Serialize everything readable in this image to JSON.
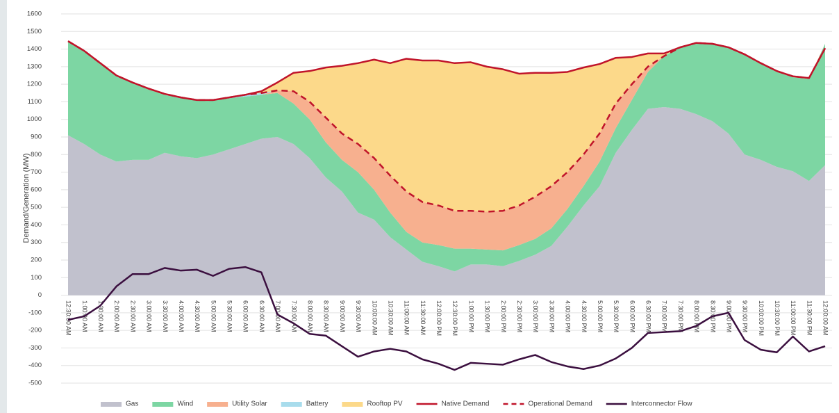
{
  "chart_data": {
    "type": "area",
    "y_label": "Demand/Generation (MW)",
    "categories": [
      "12:30:00 AM",
      "1:00:00 AM",
      "1:30:00 AM",
      "2:00:00 AM",
      "2:30:00 AM",
      "3:00:00 AM",
      "3:30:00 AM",
      "4:00:00 AM",
      "4:30:00 AM",
      "5:00:00 AM",
      "5:30:00 AM",
      "6:00:00 AM",
      "6:30:00 AM",
      "7:00:00 AM",
      "7:30:00 AM",
      "8:00:00 AM",
      "8:30:00 AM",
      "9:00:00 AM",
      "9:30:00 AM",
      "10:00:00 AM",
      "10:30:00 AM",
      "11:00:00 AM",
      "11:30:00 AM",
      "12:00:00 PM",
      "12:30:00 PM",
      "1:00:00 PM",
      "1:30:00 PM",
      "2:00:00 PM",
      "2:30:00 PM",
      "3:00:00 PM",
      "3:30:00 PM",
      "4:00:00 PM",
      "4:30:00 PM",
      "5:00:00 PM",
      "5:30:00 PM",
      "6:00:00 PM",
      "6:30:00 PM",
      "7:00:00 PM",
      "7:30:00 PM",
      "8:00:00 PM",
      "8:30:00 PM",
      "9:00:00 PM",
      "9:30:00 PM",
      "10:00:00 PM",
      "10:30:00 PM",
      "11:00:00 PM",
      "11:30:00 PM",
      "12:00:00 AM"
    ],
    "series": [
      {
        "name": "Gas",
        "type": "area",
        "color": "#c1c1cd",
        "values": [
          910,
          860,
          800,
          760,
          770,
          770,
          810,
          790,
          780,
          800,
          830,
          860,
          890,
          900,
          860,
          780,
          670,
          590,
          470,
          430,
          330,
          260,
          190,
          165,
          135,
          175,
          175,
          165,
          195,
          230,
          280,
          390,
          510,
          620,
          810,
          940,
          1060,
          1070,
          1060,
          1030,
          990,
          920,
          800,
          770,
          730,
          705,
          650,
          740
        ]
      },
      {
        "name": "Wind",
        "type": "area",
        "color": "#7dd6a3",
        "values": [
          530,
          530,
          520,
          490,
          440,
          400,
          330,
          330,
          330,
          310,
          290,
          270,
          250,
          250,
          230,
          220,
          200,
          180,
          230,
          170,
          140,
          100,
          110,
          120,
          130,
          90,
          85,
          90,
          90,
          90,
          100,
          100,
          110,
          140,
          140,
          170,
          210,
          290,
          350,
          400,
          440,
          490,
          570,
          550,
          540,
          535,
          580,
          690
        ]
      },
      {
        "name": "Utility Solar",
        "type": "area",
        "color": "#f7b08f",
        "values": [
          0,
          0,
          0,
          0,
          0,
          0,
          0,
          0,
          0,
          0,
          0,
          0,
          0,
          15,
          70,
          100,
          140,
          150,
          160,
          180,
          210,
          230,
          230,
          225,
          215,
          215,
          215,
          225,
          225,
          240,
          240,
          210,
          180,
          160,
          140,
          90,
          30,
          0,
          0,
          0,
          0,
          0,
          0,
          0,
          0,
          0,
          0,
          0
        ]
      },
      {
        "name": "Battery",
        "type": "area",
        "color": "#a8dcec",
        "values": [
          0,
          0,
          0,
          0,
          0,
          0,
          0,
          5,
          0,
          0,
          5,
          10,
          10,
          0,
          0,
          0,
          0,
          0,
          0,
          0,
          0,
          0,
          0,
          0,
          0,
          0,
          0,
          0,
          0,
          0,
          0,
          0,
          0,
          0,
          0,
          0,
          0,
          0,
          0,
          0,
          0,
          0,
          0,
          0,
          0,
          0,
          0,
          0
        ]
      },
      {
        "name": "Rooftop PV",
        "type": "area",
        "color": "#fcd98a",
        "values": [
          5,
          0,
          0,
          0,
          0,
          5,
          5,
          0,
          0,
          0,
          0,
          0,
          10,
          45,
          105,
          175,
          285,
          385,
          460,
          560,
          640,
          755,
          805,
          825,
          840,
          845,
          825,
          805,
          750,
          705,
          645,
          570,
          495,
          395,
          260,
          155,
          75,
          15,
          0,
          5,
          0,
          0,
          0,
          0,
          5,
          5,
          5,
          0
        ]
      },
      {
        "name": "Native Demand",
        "type": "line",
        "color": "#c0142a",
        "dash": false,
        "values": [
          1445,
          1390,
          1320,
          1250,
          1210,
          1175,
          1145,
          1125,
          1110,
          1110,
          1125,
          1140,
          1160,
          1210,
          1265,
          1275,
          1295,
          1305,
          1320,
          1340,
          1320,
          1345,
          1335,
          1335,
          1320,
          1325,
          1300,
          1285,
          1260,
          1265,
          1265,
          1270,
          1295,
          1315,
          1350,
          1355,
          1375,
          1375,
          1410,
          1435,
          1430,
          1410,
          1370,
          1320,
          1275,
          1245,
          1235,
          1405
        ]
      },
      {
        "name": "Operational Demand",
        "type": "line",
        "color": "#c0142a",
        "dash": true,
        "values": [
          1445,
          1390,
          1320,
          1250,
          1210,
          1175,
          1145,
          1125,
          1110,
          1110,
          1125,
          1140,
          1150,
          1165,
          1160,
          1100,
          1010,
          920,
          860,
          780,
          680,
          590,
          530,
          510,
          480,
          480,
          475,
          480,
          510,
          560,
          620,
          700,
          800,
          920,
          1090,
          1200,
          1300,
          1360,
          1410,
          1435,
          1430,
          1410,
          1370,
          1320,
          1275,
          1245,
          1235,
          1405
        ]
      },
      {
        "name": "Interconnector Flow",
        "type": "line",
        "color": "#3b0f3f",
        "dash": false,
        "values": [
          -140,
          -120,
          -60,
          50,
          120,
          120,
          155,
          140,
          145,
          110,
          150,
          160,
          130,
          -110,
          -160,
          -220,
          -230,
          -290,
          -350,
          -320,
          -305,
          -320,
          -365,
          -390,
          -425,
          -385,
          -390,
          -395,
          -365,
          -340,
          -380,
          -405,
          -420,
          -400,
          -360,
          -300,
          -215,
          -210,
          -205,
          -175,
          -120,
          -100,
          -255,
          -310,
          -325,
          -235,
          -320,
          -290
        ]
      }
    ],
    "ylim": [
      -500,
      1600
    ],
    "yticks": [
      -500,
      -400,
      -300,
      -200,
      -100,
      0,
      100,
      200,
      300,
      400,
      500,
      600,
      700,
      800,
      900,
      1000,
      1100,
      1200,
      1300,
      1400,
      1500,
      1600
    ],
    "grid": true
  }
}
